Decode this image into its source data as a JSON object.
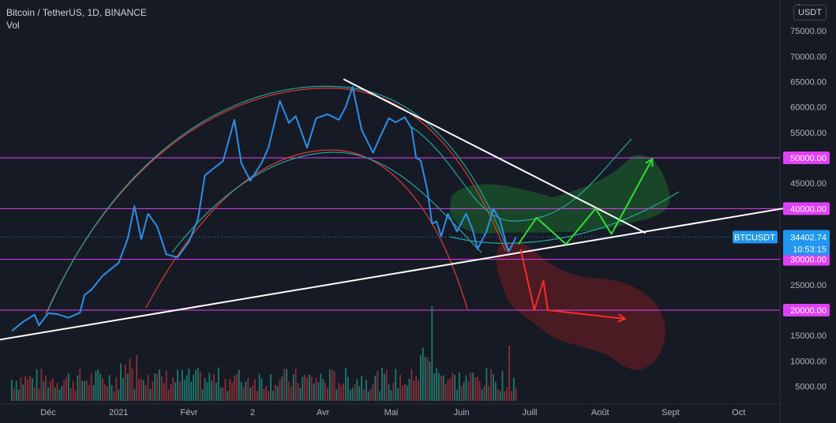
{
  "legend": {
    "symbol_line": "Bitcoin / TetherUS, 1D, BINANCE",
    "volume_label": "Vol"
  },
  "currency_badge": "USDT",
  "price_tag": {
    "symbol": "BTCUSDT",
    "price": "34402.74",
    "countdown": "10:53:15"
  },
  "colors": {
    "background": "#161a25",
    "price_line": "#2e8fe8",
    "horizontal_level": "#e040fb",
    "level_label_bg": "#e040fb",
    "trendline": "#ffffff",
    "red_arc": "#e53935",
    "teal_arc": "#26a69a",
    "bull_zone": "#1e6b2e",
    "bear_zone": "#6e1c22",
    "bull_arrow": "#33dd33",
    "bear_arrow": "#ff2a2a",
    "vol_up": "#1f7a6e",
    "vol_down": "#8a2f36",
    "axis_text": "#b2b5be",
    "current_price": "#2196f3"
  },
  "chart_data": {
    "type": "line",
    "title": "Bitcoin / TetherUS, 1D, BINANCE",
    "xlabel": "",
    "ylabel": "",
    "ylim": [
      2000,
      80000
    ],
    "grid": false,
    "y_ticks": [
      "75000.00",
      "70000.00",
      "65000.00",
      "60000.00",
      "55000.00",
      "50000.00",
      "45000.00",
      "40000.00",
      "35000.00",
      "30000.00",
      "25000.00",
      "20000.00",
      "15000.00",
      "10000.00",
      "5000.00"
    ],
    "top_tick_partial": "8",
    "x_ticks": [
      {
        "date": "2020-12-01",
        "label": "Déc"
      },
      {
        "date": "2021-01-01",
        "label": "2021"
      },
      {
        "date": "2021-02-01",
        "label": "Févr"
      },
      {
        "date": "2021-03-01",
        "label": "2"
      },
      {
        "date": "2021-04-01",
        "label": "Avr"
      },
      {
        "date": "2021-05-01",
        "label": "Mai"
      },
      {
        "date": "2021-06-01",
        "label": "Juin"
      },
      {
        "date": "2021-07-01",
        "label": "Juill"
      },
      {
        "date": "2021-08-01",
        "label": "Août"
      },
      {
        "date": "2021-09-01",
        "label": "Sept"
      },
      {
        "date": "2021-10-01",
        "label": "Oct"
      }
    ],
    "series": [
      {
        "name": "BTCUSDT",
        "x": [
          "2020-11-15",
          "2020-11-20",
          "2020-11-25",
          "2020-11-27",
          "2020-12-01",
          "2020-12-05",
          "2020-12-10",
          "2020-12-15",
          "2020-12-17",
          "2020-12-20",
          "2020-12-25",
          "2021-01-01",
          "2021-01-05",
          "2021-01-08",
          "2021-01-11",
          "2021-01-14",
          "2021-01-18",
          "2021-01-22",
          "2021-01-27",
          "2021-02-01",
          "2021-02-05",
          "2021-02-08",
          "2021-02-12",
          "2021-02-16",
          "2021-02-21",
          "2021-02-24",
          "2021-02-28",
          "2021-03-05",
          "2021-03-08",
          "2021-03-13",
          "2021-03-17",
          "2021-03-20",
          "2021-03-25",
          "2021-03-29",
          "2021-04-03",
          "2021-04-08",
          "2021-04-11",
          "2021-04-14",
          "2021-04-18",
          "2021-04-23",
          "2021-04-26",
          "2021-04-30",
          "2021-05-03",
          "2021-05-07",
          "2021-05-10",
          "2021-05-12",
          "2021-05-14",
          "2021-05-17",
          "2021-05-19",
          "2021-05-21",
          "2021-05-23",
          "2021-05-26",
          "2021-05-30",
          "2021-06-03",
          "2021-06-06",
          "2021-06-08",
          "2021-06-12",
          "2021-06-15",
          "2021-06-18",
          "2021-06-21",
          "2021-06-22",
          "2021-06-25"
        ],
        "values": [
          15900,
          17700,
          19100,
          17000,
          19400,
          19200,
          18500,
          19500,
          23000,
          24000,
          26800,
          29300,
          34000,
          40500,
          34000,
          39000,
          36500,
          31000,
          30400,
          33500,
          38000,
          46500,
          48000,
          49400,
          57500,
          49000,
          45500,
          49000,
          52000,
          61200,
          56900,
          58200,
          52000,
          57800,
          58600,
          57500,
          60000,
          64000,
          55500,
          51000,
          54000,
          57800,
          57000,
          58000,
          55800,
          50000,
          49500,
          43500,
          37000,
          37500,
          34500,
          39000,
          35500,
          39000,
          35700,
          32000,
          35500,
          40000,
          37600,
          32500,
          31700,
          34400
        ]
      },
      {
        "name": "Vol",
        "kind": "volume_bars"
      }
    ],
    "horizontal_levels": [
      {
        "value": 50000,
        "label": "50000.00"
      },
      {
        "value": 40000,
        "label": "40000.00"
      },
      {
        "value": 30000,
        "label": "30000.00"
      },
      {
        "value": 20000,
        "label": "20000.00"
      }
    ],
    "last_price": 34402.74,
    "drawings": {
      "rising_trendline": [
        [
          "2020-10-25",
          13000
        ],
        [
          "2021-10-31",
          40800
        ]
      ],
      "falling_trendline": [
        [
          "2021-04-10",
          65500
        ],
        [
          "2021-08-21",
          35200
        ]
      ],
      "bullish_projection_path": [
        [
          "2021-06-26",
          33000
        ],
        [
          "2021-07-04",
          38200
        ],
        [
          "2021-07-17",
          33000
        ],
        [
          "2021-07-30",
          40000
        ],
        [
          "2021-08-06",
          35000
        ],
        [
          "2021-08-24",
          49800
        ]
      ],
      "bearish_projection_path": [
        [
          "2021-06-27",
          32000
        ],
        [
          "2021-07-03",
          20000
        ],
        [
          "2021-07-07",
          25800
        ],
        [
          "2021-07-09",
          20000
        ],
        [
          "2021-08-12",
          18300
        ]
      ]
    }
  }
}
